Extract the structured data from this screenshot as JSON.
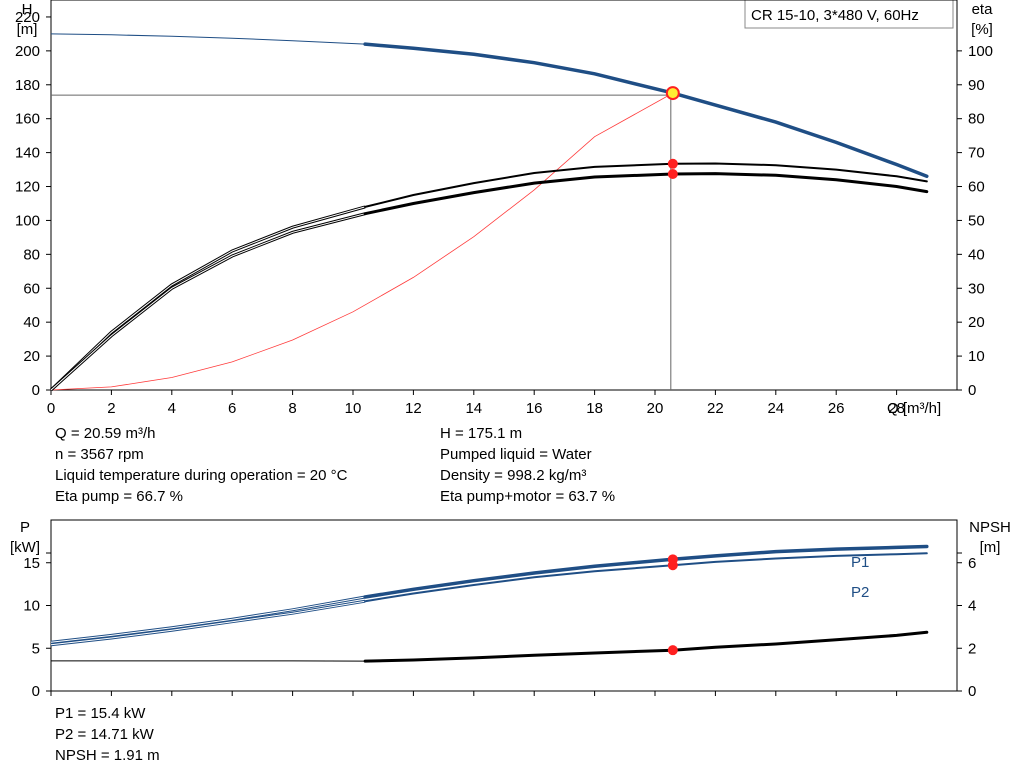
{
  "legend_box": "CR 15-10, 3*480 V, 60Hz",
  "info_left": [
    "Q = 20.59 m³/h",
    "n = 3567 rpm",
    "Liquid temperature during operation = 20 °C",
    "Eta pump = 66.7 %"
  ],
  "info_right": [
    "H = 175.1 m",
    "Pumped liquid = Water",
    "Density = 998.2 kg/m³",
    "Eta pump+motor = 63.7 %"
  ],
  "info_bottom": [
    "P1 = 15.4 kW",
    "P2 = 14.71 kW",
    "NPSH = 1.91 m"
  ],
  "colors": {
    "head": "#1f4e85",
    "power": "#1f4e85",
    "eta": "#000000",
    "npsh": "#000000",
    "system": "#ff3b3b",
    "marker": "#ff2020",
    "duty_marker_fill": "#ffee33",
    "guide": "#666666"
  },
  "chart_data": [
    {
      "type": "line",
      "panel": "head-eta",
      "x_label": "Q [m³/h]",
      "y_left_label": [
        "H",
        "[m]"
      ],
      "y_right_label": [
        "eta",
        "[%]"
      ],
      "xlim": [
        0,
        30
      ],
      "x_ticks": [
        0,
        2,
        4,
        6,
        8,
        10,
        12,
        14,
        16,
        18,
        20,
        22,
        24,
        26,
        28
      ],
      "y_left_lim": [
        0,
        230
      ],
      "y_left_ticks": [
        0,
        20,
        40,
        60,
        80,
        100,
        120,
        140,
        160,
        180,
        200,
        220
      ],
      "y_right_lim": [
        0,
        115
      ],
      "y_right_ticks": [
        0,
        10,
        20,
        30,
        40,
        50,
        60,
        70,
        80,
        90,
        100
      ],
      "duty_point": {
        "Q": 20.59,
        "H": 175.1,
        "eta_pump": 66.7,
        "eta_total": 63.7
      },
      "series": [
        {
          "axis": "left",
          "role": "head",
          "x": [
            0,
            2,
            4,
            6,
            8,
            10.4,
            12,
            14,
            16,
            18,
            20.59,
            22,
            24,
            26,
            28,
            29
          ],
          "y": [
            210,
            209.5,
            208.6,
            207.5,
            206,
            204,
            201.5,
            198,
            193,
            186.5,
            175.1,
            168,
            158,
            146,
            133,
            126
          ]
        },
        {
          "axis": "right",
          "role": "eta-pump",
          "x": [
            0,
            2,
            4,
            6,
            8,
            10.4,
            12,
            14,
            16,
            18,
            20.59,
            22,
            24,
            26,
            28,
            29
          ],
          "y": [
            0,
            17,
            31,
            41,
            48,
            54,
            57.5,
            61,
            64,
            65.8,
            66.7,
            66.8,
            66.3,
            65,
            63,
            61.5
          ]
        },
        {
          "axis": "right",
          "role": "eta-pump-motor",
          "x": [
            0,
            2,
            4,
            6,
            8,
            10.4,
            12,
            14,
            16,
            18,
            20.59,
            22,
            24,
            26,
            28,
            29
          ],
          "y": [
            0,
            16,
            30,
            39.5,
            46.5,
            52,
            55,
            58.2,
            61,
            62.8,
            63.7,
            63.8,
            63.3,
            62,
            60,
            58.5
          ]
        },
        {
          "axis": "left",
          "role": "system",
          "x": [
            0,
            2,
            4,
            6,
            8,
            10,
            12,
            14,
            16,
            18,
            20.59
          ],
          "y": [
            0,
            1.8,
            7.4,
            16.6,
            29.5,
            46.1,
            66.4,
            90.4,
            118,
            149.4,
            175.1
          ]
        }
      ]
    },
    {
      "type": "line",
      "panel": "power-npsh",
      "y_left_label": [
        "P",
        "[kW]"
      ],
      "y_right_label": [
        "NPSH",
        "[m]"
      ],
      "xlim": [
        0,
        30
      ],
      "y_left_lim": [
        0,
        20
      ],
      "y_left_ticks": [
        0,
        5,
        10,
        15
      ],
      "y_right_lim": [
        0,
        8
      ],
      "y_right_ticks": [
        0,
        2,
        4,
        6
      ],
      "series": [
        {
          "axis": "left",
          "name": "P1",
          "role": "p1",
          "x": [
            0,
            2,
            4,
            6,
            8,
            10.4,
            12,
            14,
            16,
            18,
            20.59,
            22,
            24,
            26,
            28,
            29
          ],
          "y": [
            5.7,
            6.5,
            7.4,
            8.4,
            9.5,
            11,
            11.9,
            12.9,
            13.8,
            14.6,
            15.4,
            15.8,
            16.3,
            16.6,
            16.8,
            16.9
          ]
        },
        {
          "axis": "left",
          "name": "P2",
          "role": "p2",
          "x": [
            0,
            2,
            4,
            6,
            8,
            10.4,
            12,
            14,
            16,
            18,
            20.59,
            22,
            24,
            26,
            28,
            29
          ],
          "y": [
            5.4,
            6.2,
            7.1,
            8.1,
            9.1,
            10.5,
            11.4,
            12.4,
            13.3,
            14,
            14.71,
            15.1,
            15.5,
            15.8,
            16,
            16.1
          ]
        },
        {
          "axis": "right",
          "role": "npsh",
          "x": [
            0,
            4,
            8,
            10.4,
            12,
            14,
            16,
            18,
            20.59,
            22,
            24,
            26,
            28,
            29
          ],
          "y": [
            1.41,
            1.41,
            1.41,
            1.4,
            1.45,
            1.55,
            1.67,
            1.78,
            1.91,
            2.05,
            2.2,
            2.4,
            2.6,
            2.75
          ]
        }
      ],
      "duty_point": {
        "Q": 20.59,
        "P1": 15.4,
        "P2": 14.71,
        "NPSH": 1.91
      }
    }
  ]
}
